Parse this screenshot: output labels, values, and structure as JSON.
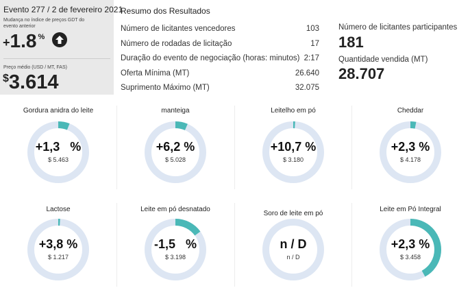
{
  "event": {
    "title": "Evento 277 / 2 de fevereiro 2021",
    "index_label": "Mudança no índice de preços GDT do evento anterior",
    "index_sign": "+",
    "index_value": "1.8",
    "index_unit": "%",
    "index_icon": "arrow-up-icon",
    "price_label": "Preço médio (USD / MT, FAS)",
    "price_currency": "$",
    "price_value": "3.614"
  },
  "results": {
    "title": "Resumo dos Resultados",
    "rows": [
      {
        "label": "Número de licitantes vencedores",
        "value": "103"
      },
      {
        "label": "Número de rodadas de licitação",
        "value": "17"
      },
      {
        "label": "Duração do evento de negociação (horas: minutos)",
        "value": "2:17"
      },
      {
        "label": "Oferta Mínima (MT)",
        "value": "26.640"
      },
      {
        "label": "Suprimento Máximo (MT)",
        "value": "32.075"
      }
    ]
  },
  "stats": {
    "participants_label": "Número de licitantes participantes",
    "participants_value": "181",
    "quantity_label": "Quantidade vendida (MT)",
    "quantity_value": "28.707"
  },
  "colors": {
    "ring_track": "#dde6f3",
    "ring_fill": "#4ab8b7",
    "panel_bg": "#e9e9e9"
  },
  "products": [
    {
      "name": "Gordura anidra do leite",
      "change": "+1,3   %",
      "price": "$ 5.463",
      "fill_fraction": 0.06
    },
    {
      "name": "manteiga",
      "change": "+6,2 %",
      "price": "$ 5.028",
      "fill_fraction": 0.065
    },
    {
      "name": "Leitelho em pó",
      "change": "+10,7 %",
      "price": "$ 3.180",
      "fill_fraction": 0.01
    },
    {
      "name": "Cheddar",
      "change": "+2,3 %",
      "price": "$ 4.178",
      "fill_fraction": 0.03
    },
    {
      "name": "Lactose",
      "change": "+3,8 %",
      "price": "$ 1.217",
      "fill_fraction": 0.01
    },
    {
      "name": "Leite em pó desnatado",
      "change": "-1,5   %",
      "price": "$ 3.198",
      "fill_fraction": 0.15
    },
    {
      "name": "Soro de leite em pó",
      "change": "n / D",
      "price": "n / D",
      "fill_fraction": 0
    },
    {
      "name": "Leite em Pó Integral",
      "change": "+2,3 %",
      "price": "$ 3.458",
      "fill_fraction": 0.42
    }
  ]
}
